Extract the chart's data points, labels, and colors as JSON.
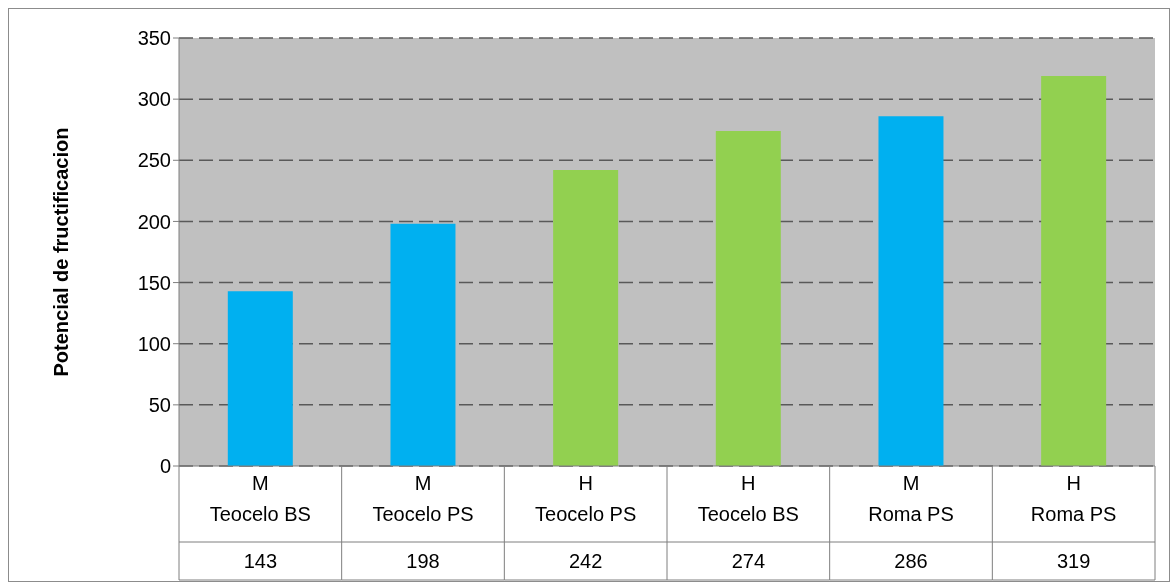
{
  "chart_data": {
    "type": "bar",
    "ylabel": "Potencial de  fructificacion",
    "categories": [
      "M\nTeocelo BS",
      "M\nTeocelo PS",
      "H\nTeocelo PS",
      "H\nTeocelo BS",
      "M\nRoma PS",
      "H\nRoma PS"
    ],
    "values": [
      143,
      198,
      242,
      274,
      286,
      319
    ],
    "colors": [
      "#00b0f0",
      "#00b0f0",
      "#92d050",
      "#92d050",
      "#00b0f0",
      "#92d050"
    ],
    "ylim": [
      0,
      350
    ],
    "yticks": [
      0,
      50,
      100,
      150,
      200,
      250,
      300,
      350
    ],
    "grid": "y",
    "data_labels": true
  }
}
